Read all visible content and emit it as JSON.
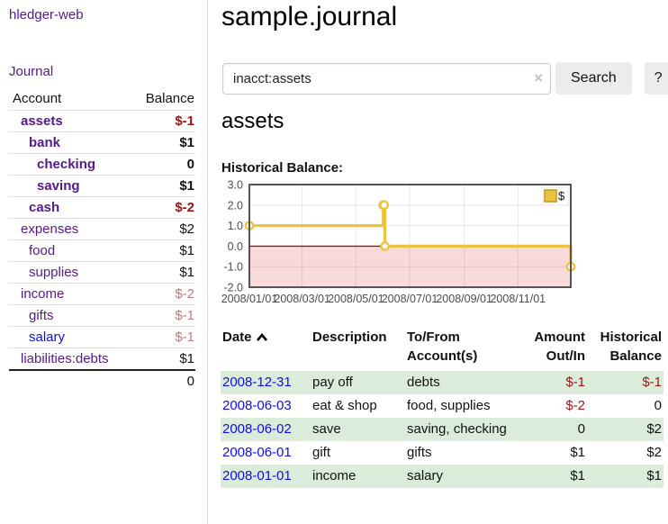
{
  "app": {
    "brand": "hledger-web"
  },
  "sidebar": {
    "journal_label": "Journal",
    "accounts_table": {
      "headers": {
        "account": "Account",
        "balance": "Balance"
      },
      "rows": [
        {
          "account": "assets",
          "balance": "$-1",
          "depth": 1,
          "emphasis": true,
          "account_style": "purple",
          "balance_style": "negative"
        },
        {
          "account": "bank",
          "balance": "$1",
          "depth": 2,
          "emphasis": true,
          "account_style": "purple",
          "balance_style": "normal"
        },
        {
          "account": "checking",
          "balance": "0",
          "depth": 3,
          "emphasis": true,
          "account_style": "purple",
          "balance_style": "normal"
        },
        {
          "account": "saving",
          "balance": "$1",
          "depth": 3,
          "emphasis": true,
          "account_style": "purple",
          "balance_style": "normal"
        },
        {
          "account": "cash",
          "balance": "$-2",
          "depth": 2,
          "emphasis": true,
          "account_style": "purple",
          "balance_style": "negative"
        },
        {
          "account": "expenses",
          "balance": "$2",
          "depth": 1,
          "emphasis": false,
          "account_style": "purple",
          "balance_style": "normal"
        },
        {
          "account": "food",
          "balance": "$1",
          "depth": 2,
          "emphasis": false,
          "account_style": "purple",
          "balance_style": "normal"
        },
        {
          "account": "supplies",
          "balance": "$1",
          "depth": 2,
          "emphasis": false,
          "account_style": "purple",
          "balance_style": "normal"
        },
        {
          "account": "income",
          "balance": "$-2",
          "depth": 1,
          "emphasis": false,
          "account_style": "purple",
          "balance_style": "negative-muted"
        },
        {
          "account": "gifts",
          "balance": "$-1",
          "depth": 2,
          "emphasis": false,
          "account_style": "purple",
          "balance_style": "negative-muted"
        },
        {
          "account": "salary",
          "balance": "$-1",
          "depth": 2,
          "emphasis": false,
          "account_style": "blue",
          "balance_style": "negative-muted"
        },
        {
          "account": "liabilities:debts",
          "balance": "$1",
          "depth": 1,
          "emphasis": false,
          "account_style": "purple",
          "balance_style": "normal"
        }
      ],
      "total": "0"
    }
  },
  "header": {
    "title": "sample.journal"
  },
  "search": {
    "value": "inacct:assets",
    "clear_icon": "×",
    "search_label": "Search",
    "help_label": "?"
  },
  "register": {
    "heading": "assets",
    "chart_label": "Historical Balance:",
    "table": {
      "headers": {
        "date": "Date",
        "description": "Description",
        "accounts": "To/From Account(s)",
        "amount": "Amount Out/In",
        "balance": "Historical Balance"
      },
      "sort": "date-ascending-indicator",
      "rows": [
        {
          "date": "2008-12-31",
          "description": "pay off",
          "accounts": "debts",
          "amount": "$-1",
          "balance": "$-1"
        },
        {
          "date": "2008-06-03",
          "description": "eat & shop",
          "accounts": "food, supplies",
          "amount": "$-2",
          "balance": "0"
        },
        {
          "date": "2008-06-02",
          "description": "save",
          "accounts": "saving, checking",
          "amount": "0",
          "balance": "$2"
        },
        {
          "date": "2008-06-01",
          "description": "gift",
          "accounts": "gifts",
          "amount": "$1",
          "balance": "$2"
        },
        {
          "date": "2008-01-01",
          "description": "income",
          "accounts": "salary",
          "amount": "$1",
          "balance": "$1"
        }
      ]
    }
  },
  "chart_data": {
    "type": "line",
    "title": "Historical Balance",
    "step": true,
    "series": [
      {
        "name": "$",
        "color": "#edc240",
        "points": [
          [
            "2008-01-01",
            1
          ],
          [
            "2008-06-01",
            2
          ],
          [
            "2008-06-02",
            2
          ],
          [
            "2008-06-03",
            0
          ],
          [
            "2008-12-31",
            -1
          ]
        ]
      }
    ],
    "x_range": [
      "2008-01-01",
      "2008-12-31"
    ],
    "x_ticks": [
      {
        "value": "2008-01-01",
        "label": "2008/01/01"
      },
      {
        "value": "2008-03-01",
        "label": "2008/03/01"
      },
      {
        "value": "2008-05-01",
        "label": "2008/05/01"
      },
      {
        "value": "2008-07-01",
        "label": "2008/07/01"
      },
      {
        "value": "2008-09-01",
        "label": "2008/09/01"
      },
      {
        "value": "2008-11-01",
        "label": "2008/11/01"
      }
    ],
    "y_ticks": [
      3,
      2,
      1,
      0,
      -1,
      -2
    ],
    "y_tick_labels": [
      "3.0",
      "2.0",
      "1.0",
      "0.0",
      "-1.0",
      "-2.0"
    ],
    "ylim": [
      -2,
      3
    ],
    "grid": true,
    "legend": {
      "label": "$",
      "swatch_color": "#edc240",
      "position": "top-right"
    },
    "colors": {
      "negative_region": "#f9dada",
      "zero_line": "#8c1717",
      "plot_border": "#545454",
      "tick_text": "#4d4d4d"
    }
  }
}
